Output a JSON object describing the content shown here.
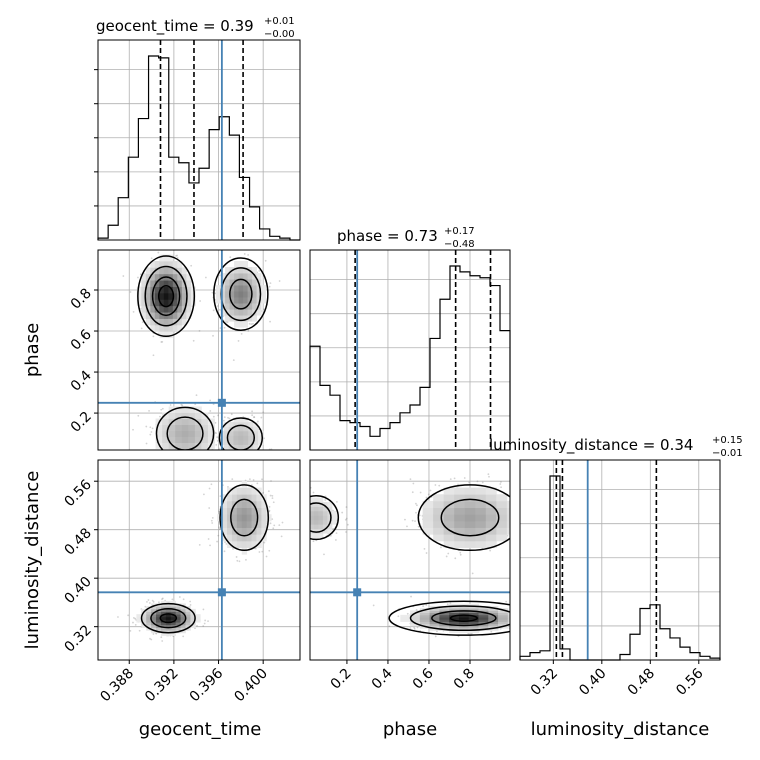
{
  "chart_data": {
    "type": "corner",
    "parameters": [
      "geocent_time",
      "phase",
      "luminosity_distance"
    ],
    "axis_labels": {
      "geocent_time": "geocent_time",
      "phase": "phase",
      "luminosity_distance": "luminosity_distance"
    },
    "ranges": {
      "geocent_time": [
        0.3852,
        0.4033
      ],
      "phase": [
        0.02,
        0.995
      ],
      "luminosity_distance": [
        0.265,
        0.595
      ]
    },
    "ticks": {
      "geocent_time": [
        0.388,
        0.392,
        0.396,
        0.4
      ],
      "phase_x": [
        0.2,
        0.4,
        0.6,
        0.8
      ],
      "phase_y": [
        0.2,
        0.4,
        0.6,
        0.8
      ],
      "luminosity_distance": [
        0.32,
        0.4,
        0.48,
        0.56
      ]
    },
    "tick_labels": {
      "geocent_time": [
        "0.388",
        "0.392",
        "0.396",
        "0.400"
      ],
      "phase_x": [
        "0.2",
        "0.4",
        "0.6",
        "0.8"
      ],
      "phase_y": [
        "0.2",
        "0.4",
        "0.6",
        "0.8"
      ],
      "luminosity_distance": [
        "0.32",
        "0.40",
        "0.48",
        "0.56"
      ]
    },
    "titles": {
      "geocent_time": {
        "text": "geocent_time = 0.39",
        "plus": "+0.01",
        "minus": "−0.00"
      },
      "phase": {
        "text": "phase = 0.73",
        "plus": "+0.17",
        "minus": "−0.48"
      },
      "luminosity_distance": {
        "text": "luminosity_distance = 0.34",
        "plus": "+0.15",
        "minus": "−0.01"
      }
    },
    "truths": {
      "geocent_time": 0.3963,
      "phase": 0.25,
      "luminosity_distance": 0.3767
    },
    "quantiles": {
      "geocent_time": [
        0.3908,
        0.3938,
        0.3982
      ],
      "phase": [
        0.24,
        0.73,
        0.9
      ],
      "luminosity_distance": [
        0.325,
        0.335,
        0.49
      ]
    },
    "histograms": {
      "geocent_time": {
        "edges": [
          0.3852,
          0.38611,
          0.38701,
          0.38792,
          0.38882,
          0.38973,
          0.39063,
          0.39154,
          0.39244,
          0.39335,
          0.39425,
          0.39516,
          0.39606,
          0.39697,
          0.39787,
          0.39878,
          0.39968,
          0.40059,
          0.40149,
          0.4024,
          0.4033
        ],
        "counts": [
          0.01,
          0.08,
          0.23,
          0.45,
          0.66,
          1.0,
          0.99,
          0.45,
          0.42,
          0.31,
          0.39,
          0.6,
          0.67,
          0.57,
          0.34,
          0.18,
          0.06,
          0.02,
          0.01,
          0.0
        ]
      },
      "phase": {
        "edges": [
          0.02,
          0.06875,
          0.1175,
          0.16625,
          0.215,
          0.26375,
          0.3125,
          0.36125,
          0.41,
          0.45875,
          0.5075,
          0.55625,
          0.605,
          0.65375,
          0.7025,
          0.75125,
          0.8,
          0.84875,
          0.8975,
          0.94625,
          0.995
        ],
        "counts": [
          0.53,
          0.33,
          0.28,
          0.15,
          0.14,
          0.12,
          0.07,
          0.11,
          0.14,
          0.19,
          0.23,
          0.32,
          0.57,
          0.77,
          0.94,
          0.91,
          0.89,
          0.88,
          0.84,
          0.61
        ]
      },
      "luminosity_distance": {
        "edges": [
          0.265,
          0.2815,
          0.298,
          0.3145,
          0.331,
          0.3475,
          0.364,
          0.3805,
          0.397,
          0.4135,
          0.43,
          0.4465,
          0.463,
          0.4795,
          0.496,
          0.5125,
          0.529,
          0.5455,
          0.562,
          0.5785,
          0.595
        ],
        "counts": [
          0.02,
          0.04,
          0.05,
          1.0,
          0.06,
          0.0,
          0.0,
          0.0,
          0.0,
          0.0,
          0.03,
          0.14,
          0.28,
          0.3,
          0.17,
          0.12,
          0.07,
          0.04,
          0.02,
          0.01
        ]
      }
    },
    "grid": true,
    "colors": {
      "truth": "#4682b4",
      "hist": "#000000",
      "quantile": "#000000",
      "grid": "#b0b0b0",
      "points": "#808080"
    }
  }
}
